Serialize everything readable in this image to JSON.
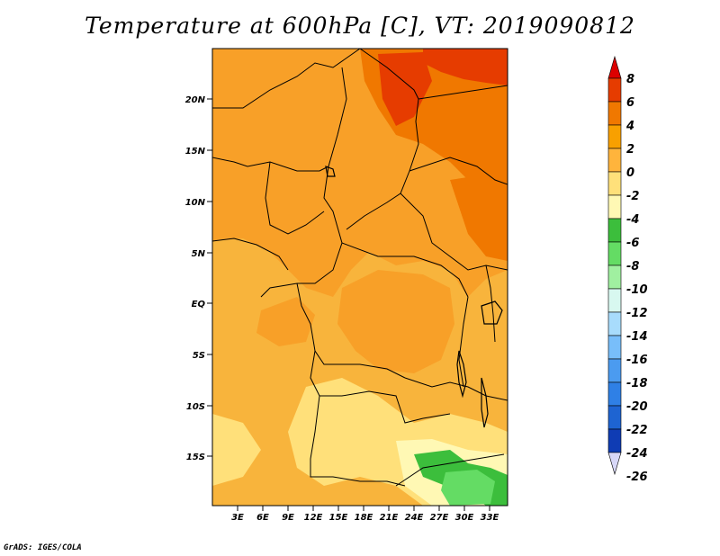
{
  "title": "Temperature at 600hPa [C], VT: 2019090812",
  "credit": "GrADS: IGES/COLA",
  "lat_labels": [
    "20N",
    "15N",
    "10N",
    "5N",
    "EQ",
    "5S",
    "10S",
    "15S"
  ],
  "lon_labels": [
    "3E",
    "6E",
    "9E",
    "12E",
    "15E",
    "18E",
    "21E",
    "24E",
    "27E",
    "30E",
    "33E"
  ],
  "colorbar": {
    "labels": [
      "8",
      "6",
      "4",
      "2",
      "0",
      "-2",
      "-4",
      "-6",
      "-8",
      "-10",
      "-12",
      "-14",
      "-16",
      "-18",
      "-20",
      "-22",
      "-24",
      "-26"
    ],
    "colors": [
      "#dc0000",
      "#e63c00",
      "#f07800",
      "#f8a000",
      "#ffb43c",
      "#ffe07a",
      "#fff8b4",
      "#3cbe3c",
      "#64dc64",
      "#a0f0a0",
      "#d8f8f0",
      "#a8dcfc",
      "#78befa",
      "#4b9bf0",
      "#2f80e6",
      "#1e64d2",
      "#0f3cb4",
      "#050a6e"
    ]
  },
  "fields": {
    "base_color": "#f8b43c",
    "warm_color": "#f8a028",
    "hot_color": "#f07800",
    "very_hot_color": "#e63c00",
    "cool_color": "#ffe07a",
    "green_color": "#3cbe3c",
    "light_green_color": "#64dc64"
  }
}
